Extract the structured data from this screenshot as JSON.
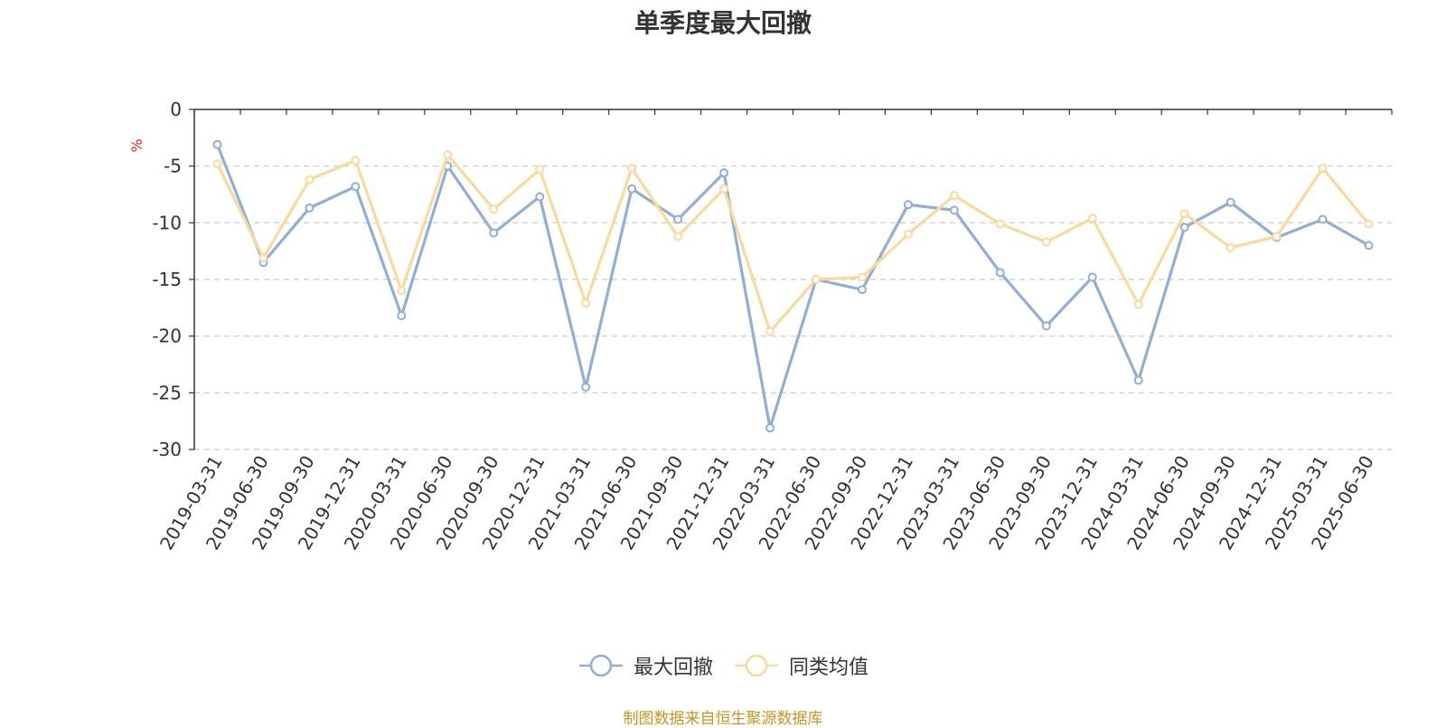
{
  "chart_data": {
    "type": "line",
    "title": "单季度最大回撤",
    "ylabel": "%",
    "ylim": [
      -30,
      0
    ],
    "yticks": [
      0,
      -5,
      -10,
      -15,
      -20,
      -25,
      -30
    ],
    "grid": true,
    "legend_position": "bottom",
    "x": [
      "2019-03-31",
      "2019-06-30",
      "2019-09-30",
      "2019-12-31",
      "2020-03-31",
      "2020-06-30",
      "2020-09-30",
      "2020-12-31",
      "2021-03-31",
      "2021-06-30",
      "2021-09-30",
      "2021-12-31",
      "2022-03-31",
      "2022-06-30",
      "2022-09-30",
      "2022-12-31",
      "2023-03-31",
      "2023-06-30",
      "2023-09-30",
      "2023-12-31",
      "2024-03-31",
      "2024-06-30",
      "2024-09-30",
      "2024-12-31",
      "2025-03-31",
      "2025-06-30"
    ],
    "series": [
      {
        "name": "最大回撤",
        "color": "#8fafd9",
        "values": [
          -3.1,
          -13.5,
          -8.7,
          -6.8,
          -18.2,
          -5.0,
          -10.9,
          -7.7,
          -24.5,
          -7.0,
          -9.7,
          -5.6,
          -28.1,
          -15.0,
          -15.9,
          -8.4,
          -8.9,
          -14.4,
          -19.1,
          -14.8,
          -23.9,
          -10.4,
          -8.2,
          -11.3,
          -9.7,
          -12.0
        ]
      },
      {
        "name": "同类均值",
        "color": "#fbd99b",
        "values": [
          -4.8,
          -13.1,
          -6.2,
          -4.5,
          -16.0,
          -4.0,
          -8.8,
          -5.3,
          -17.1,
          -5.2,
          -11.2,
          -7.0,
          -19.6,
          -15.0,
          -14.8,
          -11.0,
          -7.6,
          -10.1,
          -11.7,
          -9.6,
          -17.2,
          -9.2,
          -12.2,
          -11.2,
          -5.2,
          -10.1
        ]
      }
    ]
  },
  "footer": {
    "source": "制图数据来自恒生聚源数据库"
  }
}
